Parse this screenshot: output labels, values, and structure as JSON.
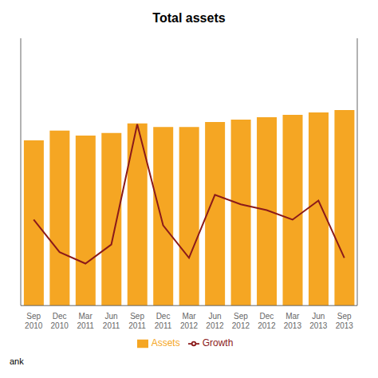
{
  "chart_data": {
    "type": "bar",
    "title": "Total assets",
    "categories": [
      "Sep\n2010",
      "Dec\n2010",
      "Mar\n2011",
      "Jun\n2011",
      "Sep\n2011",
      "Dec\n2011",
      "Mar\n2012",
      "Jun\n2012",
      "Sep\n2012",
      "Dec\n2012",
      "Mar\n2013",
      "Jun\n2013",
      "Sep\n2013"
    ],
    "series": [
      {
        "name": "Assets",
        "type": "bar",
        "color": "#F5A623",
        "values": [
          68,
          72,
          70,
          71,
          75,
          73.5,
          73.5,
          75.5,
          76.5,
          77.5,
          78.5,
          79.5,
          80.5
        ]
      },
      {
        "name": "Growth",
        "type": "line",
        "color": "#8B1A1A",
        "axis": "y2",
        "values": [
          35,
          18,
          12,
          22,
          85,
          32,
          15,
          48,
          43,
          40,
          35,
          45,
          15
        ]
      }
    ],
    "ylim": [
      0,
      110
    ],
    "y2lim": [
      -10,
      130
    ],
    "grid": false,
    "legend": "bottom",
    "tick_labels": "x",
    "annotations": [
      "ank"
    ]
  }
}
